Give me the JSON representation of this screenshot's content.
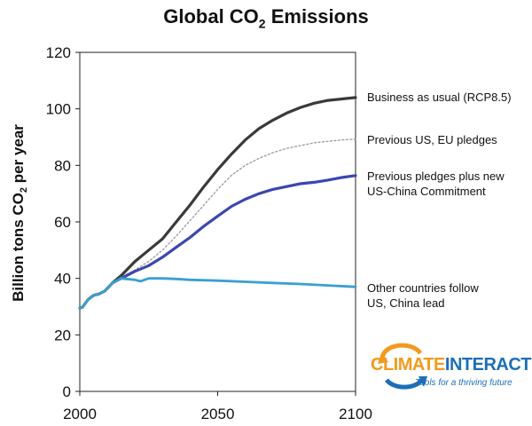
{
  "chart_data": {
    "type": "line",
    "title_main": "Global CO",
    "title_sub": "2",
    "title_end": " Emissions",
    "ylabel_main": "Billion tons CO",
    "ylabel_sub": "2",
    "ylabel_end": " per year",
    "xlabel": "",
    "xlim": [
      2000,
      2100
    ],
    "ylim": [
      0,
      120
    ],
    "x_ticks": [
      "2000",
      "2050",
      "2100"
    ],
    "y_ticks": [
      "0",
      "20",
      "40",
      "60",
      "80",
      "100",
      "120"
    ],
    "grid": false,
    "series": [
      {
        "name": "Business as usual (RCP8.5)",
        "color": "#3a3a3a",
        "style": "solid",
        "x": [
          2000,
          2001,
          2003,
          2005,
          2007,
          2009,
          2012,
          2015,
          2020,
          2025,
          2030,
          2035,
          2040,
          2045,
          2050,
          2055,
          2060,
          2065,
          2070,
          2075,
          2080,
          2085,
          2090,
          2095,
          2100
        ],
        "y": [
          29.5,
          29.8,
          32.5,
          34,
          34.5,
          35.5,
          38.5,
          41,
          46,
          50,
          54,
          60,
          66,
          72.5,
          78.5,
          84,
          89,
          93,
          96,
          98.5,
          100.5,
          102,
          103,
          103.5,
          104
        ]
      },
      {
        "name": "Previous US, EU pledges",
        "color": "#9a9a9a",
        "style": "dotted",
        "x": [
          2012,
          2015,
          2020,
          2025,
          2030,
          2035,
          2040,
          2045,
          2050,
          2055,
          2060,
          2065,
          2070,
          2075,
          2080,
          2085,
          2090,
          2095,
          2100
        ],
        "y": [
          38.5,
          40.5,
          43,
          46,
          50,
          55,
          60.5,
          66,
          71.5,
          76.5,
          80,
          82.5,
          84.5,
          86,
          87,
          88,
          88.5,
          89,
          89.3
        ]
      },
      {
        "name": "Previous pledges plus new US-China Commitment",
        "color": "#3b47b0",
        "style": "solid",
        "x": [
          2012,
          2015,
          2020,
          2025,
          2030,
          2035,
          2040,
          2045,
          2050,
          2055,
          2060,
          2065,
          2070,
          2075,
          2080,
          2085,
          2090,
          2095,
          2100
        ],
        "y": [
          38.5,
          40,
          42.5,
          44.5,
          47.5,
          51,
          54.5,
          58.5,
          62,
          65.5,
          68,
          70,
          71.5,
          72.5,
          73.5,
          74,
          74.8,
          75.7,
          76.4
        ]
      },
      {
        "name": "Other countries follow US, China lead",
        "color": "#3aa0d0",
        "style": "solid",
        "x": [
          2000,
          2001,
          2003,
          2005,
          2007,
          2009,
          2012,
          2015,
          2020,
          2022,
          2025,
          2030,
          2035,
          2040,
          2050,
          2060,
          2070,
          2080,
          2090,
          2100
        ],
        "y": [
          29.5,
          29.8,
          32.5,
          34,
          34.5,
          35.5,
          38.5,
          40,
          39.5,
          39,
          40,
          40,
          39.8,
          39.5,
          39.2,
          38.8,
          38.4,
          38,
          37.5,
          37
        ]
      }
    ],
    "label_lines": [
      [
        "Business as usual (RCP8.5)"
      ],
      [
        "Previous US, EU pledges"
      ],
      [
        "Previous pledges plus new",
        "US-China Commitment"
      ],
      [
        "Other countries follow",
        "US, China lead"
      ]
    ]
  },
  "logo": {
    "word_part1": "CLIMATE",
    "word_part2": "INTERACTIVE",
    "tagline": "Tools for a thriving future",
    "color_orange": "#f29a1f",
    "color_blue": "#1d6fb8"
  }
}
